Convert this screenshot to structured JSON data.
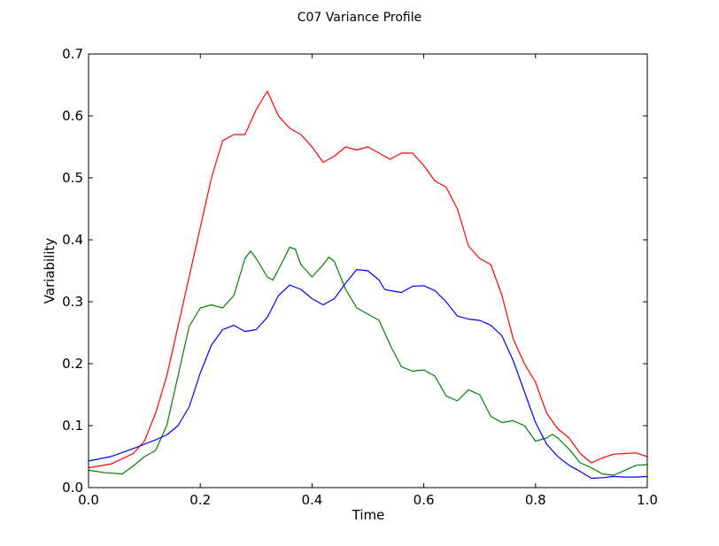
{
  "chart_data": {
    "type": "line",
    "title": "C07 Variance Profile",
    "xlabel": "Time",
    "ylabel": "Variability",
    "xlim": [
      0.0,
      1.0
    ],
    "ylim": [
      0.0,
      0.7
    ],
    "x_ticks": [
      "0.0",
      "0.2",
      "0.4",
      "0.6",
      "0.8",
      "1.0"
    ],
    "y_ticks": [
      "0.0",
      "0.1",
      "0.2",
      "0.3",
      "0.4",
      "0.5",
      "0.6",
      "0.7"
    ],
    "grid": false,
    "legend": null,
    "series": [
      {
        "color": "#ff0000",
        "points": [
          [
            0.0,
            0.032
          ],
          [
            0.04,
            0.038
          ],
          [
            0.08,
            0.055
          ],
          [
            0.1,
            0.075
          ],
          [
            0.12,
            0.12
          ],
          [
            0.14,
            0.18
          ],
          [
            0.16,
            0.26
          ],
          [
            0.18,
            0.34
          ],
          [
            0.2,
            0.42
          ],
          [
            0.22,
            0.5
          ],
          [
            0.24,
            0.56
          ],
          [
            0.26,
            0.57
          ],
          [
            0.28,
            0.57
          ],
          [
            0.3,
            0.61
          ],
          [
            0.32,
            0.64
          ],
          [
            0.34,
            0.6
          ],
          [
            0.36,
            0.58
          ],
          [
            0.38,
            0.57
          ],
          [
            0.4,
            0.55
          ],
          [
            0.42,
            0.525
          ],
          [
            0.44,
            0.535
          ],
          [
            0.46,
            0.55
          ],
          [
            0.48,
            0.545
          ],
          [
            0.5,
            0.55
          ],
          [
            0.52,
            0.54
          ],
          [
            0.54,
            0.53
          ],
          [
            0.56,
            0.54
          ],
          [
            0.58,
            0.54
          ],
          [
            0.6,
            0.52
          ],
          [
            0.62,
            0.495
          ],
          [
            0.64,
            0.485
          ],
          [
            0.66,
            0.45
          ],
          [
            0.68,
            0.39
          ],
          [
            0.7,
            0.37
          ],
          [
            0.72,
            0.36
          ],
          [
            0.74,
            0.31
          ],
          [
            0.76,
            0.24
          ],
          [
            0.78,
            0.2
          ],
          [
            0.8,
            0.17
          ],
          [
            0.82,
            0.12
          ],
          [
            0.84,
            0.095
          ],
          [
            0.86,
            0.08
          ],
          [
            0.88,
            0.055
          ],
          [
            0.9,
            0.04
          ],
          [
            0.92,
            0.048
          ],
          [
            0.94,
            0.054
          ],
          [
            0.96,
            0.055
          ],
          [
            0.98,
            0.056
          ],
          [
            1.0,
            0.05
          ]
        ]
      },
      {
        "color": "#008000",
        "points": [
          [
            0.0,
            0.028
          ],
          [
            0.03,
            0.024
          ],
          [
            0.06,
            0.022
          ],
          [
            0.08,
            0.035
          ],
          [
            0.1,
            0.05
          ],
          [
            0.12,
            0.06
          ],
          [
            0.14,
            0.1
          ],
          [
            0.16,
            0.18
          ],
          [
            0.18,
            0.26
          ],
          [
            0.2,
            0.29
          ],
          [
            0.22,
            0.295
          ],
          [
            0.24,
            0.29
          ],
          [
            0.26,
            0.31
          ],
          [
            0.28,
            0.37
          ],
          [
            0.29,
            0.382
          ],
          [
            0.3,
            0.37
          ],
          [
            0.32,
            0.34
          ],
          [
            0.33,
            0.335
          ],
          [
            0.35,
            0.37
          ],
          [
            0.36,
            0.388
          ],
          [
            0.37,
            0.385
          ],
          [
            0.38,
            0.36
          ],
          [
            0.4,
            0.34
          ],
          [
            0.42,
            0.36
          ],
          [
            0.43,
            0.372
          ],
          [
            0.44,
            0.365
          ],
          [
            0.46,
            0.32
          ],
          [
            0.48,
            0.29
          ],
          [
            0.5,
            0.28
          ],
          [
            0.52,
            0.27
          ],
          [
            0.54,
            0.23
          ],
          [
            0.56,
            0.195
          ],
          [
            0.58,
            0.188
          ],
          [
            0.6,
            0.19
          ],
          [
            0.62,
            0.18
          ],
          [
            0.64,
            0.148
          ],
          [
            0.66,
            0.14
          ],
          [
            0.68,
            0.158
          ],
          [
            0.7,
            0.15
          ],
          [
            0.72,
            0.115
          ],
          [
            0.74,
            0.105
          ],
          [
            0.76,
            0.108
          ],
          [
            0.78,
            0.1
          ],
          [
            0.8,
            0.075
          ],
          [
            0.82,
            0.08
          ],
          [
            0.83,
            0.086
          ],
          [
            0.84,
            0.08
          ],
          [
            0.86,
            0.062
          ],
          [
            0.88,
            0.04
          ],
          [
            0.9,
            0.032
          ],
          [
            0.92,
            0.022
          ],
          [
            0.94,
            0.02
          ],
          [
            0.96,
            0.028
          ],
          [
            0.98,
            0.036
          ],
          [
            1.0,
            0.037
          ]
        ]
      },
      {
        "color": "#0000ff",
        "points": [
          [
            0.0,
            0.043
          ],
          [
            0.04,
            0.05
          ],
          [
            0.08,
            0.063
          ],
          [
            0.1,
            0.07
          ],
          [
            0.12,
            0.077
          ],
          [
            0.14,
            0.085
          ],
          [
            0.16,
            0.1
          ],
          [
            0.18,
            0.13
          ],
          [
            0.2,
            0.185
          ],
          [
            0.22,
            0.23
          ],
          [
            0.24,
            0.255
          ],
          [
            0.26,
            0.262
          ],
          [
            0.28,
            0.252
          ],
          [
            0.3,
            0.255
          ],
          [
            0.32,
            0.275
          ],
          [
            0.34,
            0.31
          ],
          [
            0.36,
            0.327
          ],
          [
            0.38,
            0.32
          ],
          [
            0.4,
            0.305
          ],
          [
            0.42,
            0.295
          ],
          [
            0.44,
            0.305
          ],
          [
            0.46,
            0.33
          ],
          [
            0.48,
            0.352
          ],
          [
            0.5,
            0.35
          ],
          [
            0.52,
            0.335
          ],
          [
            0.53,
            0.32
          ],
          [
            0.54,
            0.318
          ],
          [
            0.56,
            0.315
          ],
          [
            0.58,
            0.325
          ],
          [
            0.6,
            0.326
          ],
          [
            0.62,
            0.318
          ],
          [
            0.64,
            0.3
          ],
          [
            0.66,
            0.277
          ],
          [
            0.68,
            0.272
          ],
          [
            0.7,
            0.27
          ],
          [
            0.72,
            0.262
          ],
          [
            0.74,
            0.245
          ],
          [
            0.76,
            0.205
          ],
          [
            0.78,
            0.155
          ],
          [
            0.8,
            0.105
          ],
          [
            0.82,
            0.07
          ],
          [
            0.84,
            0.05
          ],
          [
            0.86,
            0.036
          ],
          [
            0.88,
            0.026
          ],
          [
            0.9,
            0.015
          ],
          [
            0.92,
            0.016
          ],
          [
            0.94,
            0.018
          ],
          [
            0.96,
            0.017
          ],
          [
            0.98,
            0.017
          ],
          [
            1.0,
            0.018
          ]
        ]
      }
    ]
  }
}
